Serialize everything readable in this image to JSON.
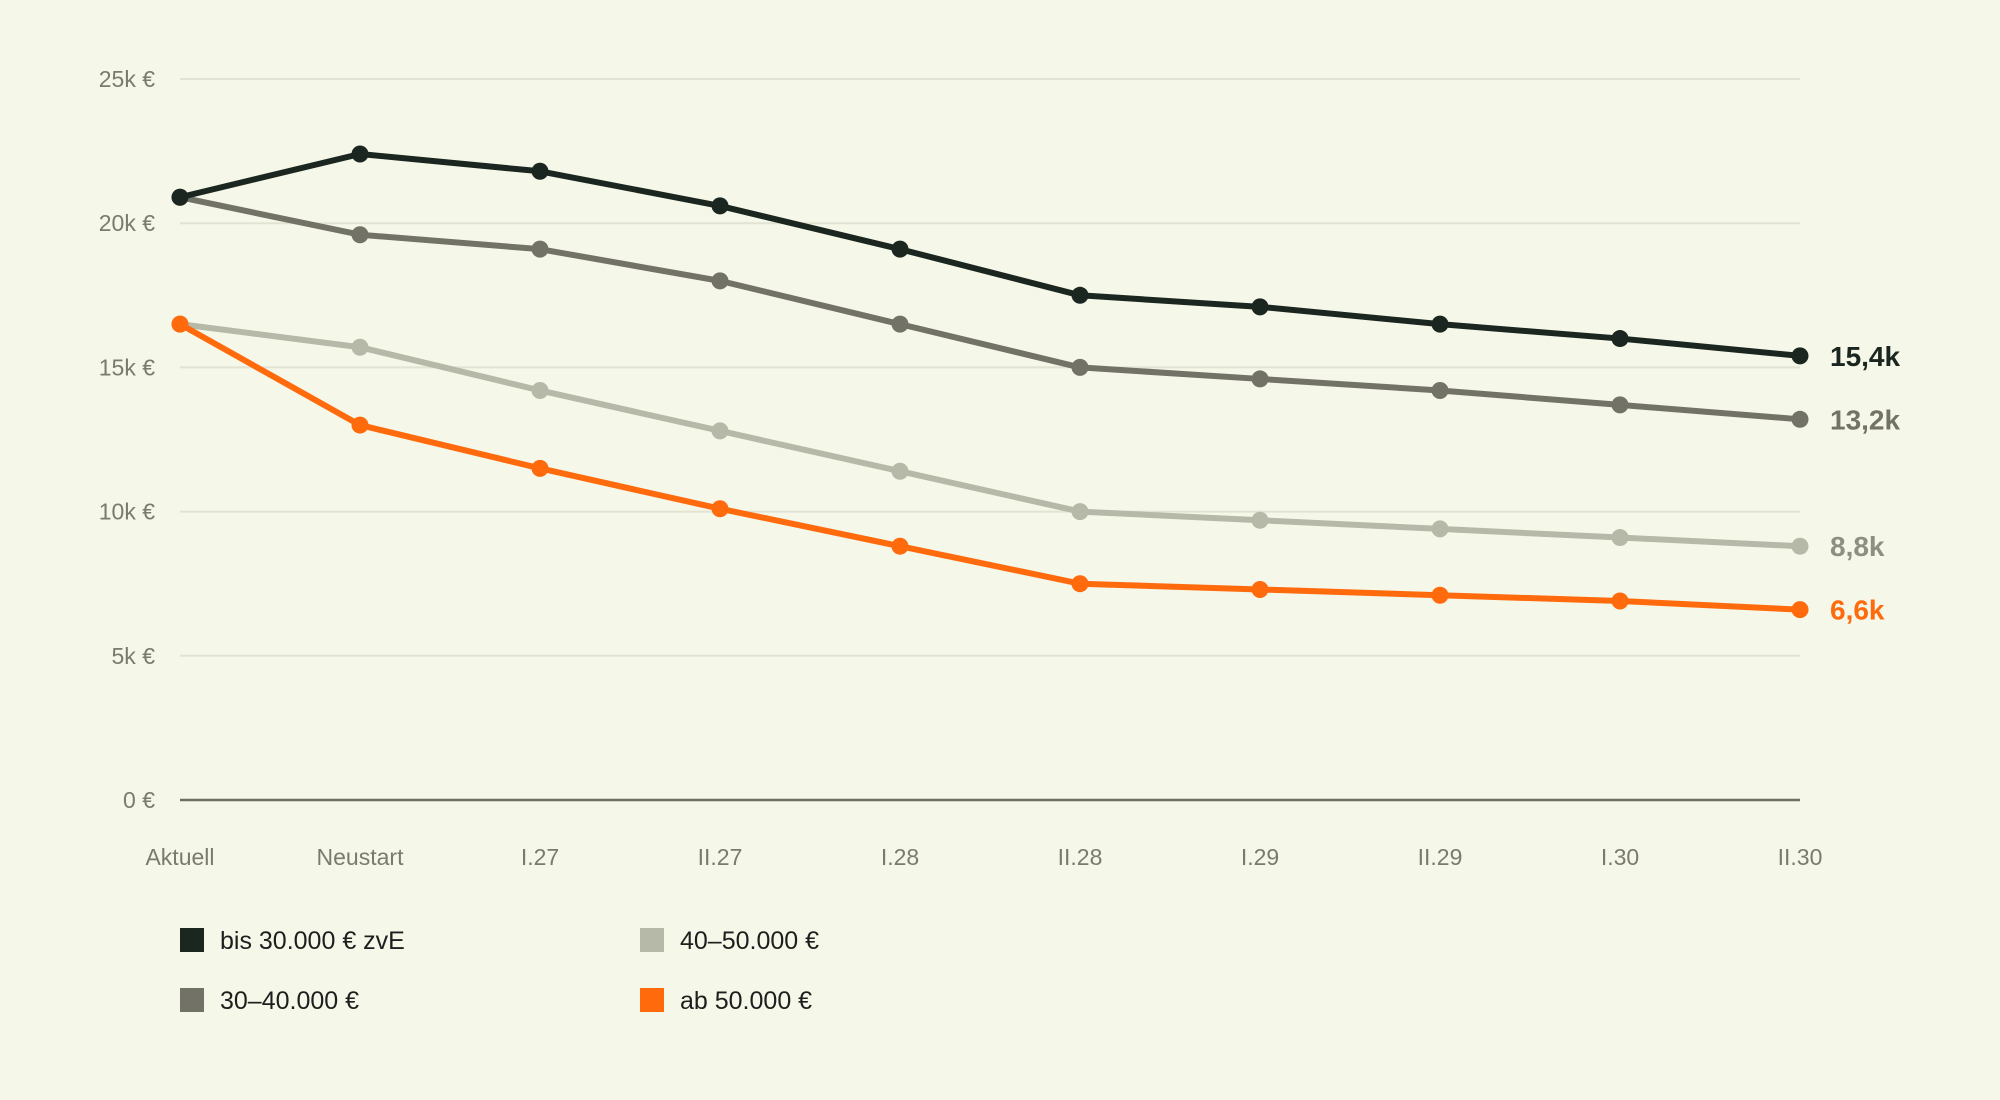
{
  "chart_data": {
    "type": "line",
    "categories": [
      "Aktuell",
      "Neustart",
      "I.27",
      "II.27",
      "I.28",
      "II.28",
      "I.29",
      "II.29",
      "I.30",
      "II.30"
    ],
    "ylim": [
      0,
      25000
    ],
    "yticks": [
      {
        "value": 0,
        "label": "0 €"
      },
      {
        "value": 5000,
        "label": "5k €"
      },
      {
        "value": 10000,
        "label": "10k €"
      },
      {
        "value": 15000,
        "label": "15k €"
      },
      {
        "value": 20000,
        "label": "20k €"
      },
      {
        "value": 25000,
        "label": "25k €"
      }
    ],
    "grid": true,
    "legend_position": "bottom-left",
    "series": [
      {
        "name": "bis 30.000 € zvE",
        "color": "#1b2620",
        "values": [
          20900,
          22400,
          21800,
          20600,
          19100,
          17500,
          17100,
          16500,
          16000,
          15400
        ],
        "end_label": "15,4k"
      },
      {
        "name": "30–40.000 €",
        "color": "#727266",
        "values": [
          20900,
          19600,
          19100,
          18000,
          16500,
          15000,
          14600,
          14200,
          13700,
          13200
        ],
        "end_label": "13,2k"
      },
      {
        "name": "40–50.000 €",
        "color": "#b7b9a8",
        "label_color": "#8d8f80",
        "values": [
          16500,
          15700,
          14200,
          12800,
          11400,
          10000,
          9700,
          9400,
          9100,
          8800
        ],
        "end_label": "8,8k"
      },
      {
        "name": "ab 50.000 €",
        "color": "#ff6a0d",
        "values": [
          16500,
          13000,
          11500,
          10100,
          8800,
          7500,
          7300,
          7100,
          6900,
          6600
        ],
        "end_label": "6,6k"
      }
    ]
  }
}
